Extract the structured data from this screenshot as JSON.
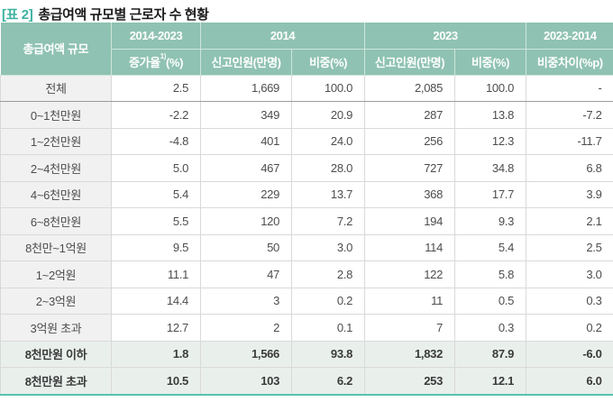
{
  "title": {
    "tag": "[표 2]",
    "text": "총급여액 규모별 근로자 수 현황"
  },
  "table": {
    "header": {
      "row_label_col": "총급여액 규모",
      "groups": [
        "2014-2023",
        "2014",
        "2023",
        "2023-2014"
      ],
      "sub_growth": {
        "prefix": "증가율",
        "sup": "1)",
        "suffix": "(%)"
      },
      "subs": [
        "신고인원(만명)",
        "비중(%)",
        "신고인원(만명)",
        "비중(%)",
        "비중차이(%p)"
      ]
    },
    "rows": [
      {
        "label": "전체",
        "values": [
          "2.5",
          "1,669",
          "100.0",
          "2,085",
          "100.0",
          "-"
        ],
        "type": "total"
      },
      {
        "label": "0~1천만원",
        "values": [
          "-2.2",
          "349",
          "20.9",
          "287",
          "13.8",
          "-7.2"
        ],
        "type": "normal"
      },
      {
        "label": "1~2천만원",
        "values": [
          "-4.8",
          "401",
          "24.0",
          "256",
          "12.3",
          "-11.7"
        ],
        "type": "normal"
      },
      {
        "label": "2~4천만원",
        "values": [
          "5.0",
          "467",
          "28.0",
          "727",
          "34.8",
          "6.8"
        ],
        "type": "normal"
      },
      {
        "label": "4~6천만원",
        "values": [
          "5.4",
          "229",
          "13.7",
          "368",
          "17.7",
          "3.9"
        ],
        "type": "normal"
      },
      {
        "label": "6~8천만원",
        "values": [
          "5.5",
          "120",
          "7.2",
          "194",
          "9.3",
          "2.1"
        ],
        "type": "normal"
      },
      {
        "label": "8천만~1억원",
        "values": [
          "9.5",
          "50",
          "3.0",
          "114",
          "5.4",
          "2.5"
        ],
        "type": "normal"
      },
      {
        "label": "1~2억원",
        "values": [
          "11.1",
          "47",
          "2.8",
          "122",
          "5.8",
          "3.0"
        ],
        "type": "normal"
      },
      {
        "label": "2~3억원",
        "values": [
          "14.4",
          "3",
          "0.2",
          "11",
          "0.5",
          "0.3"
        ],
        "type": "normal"
      },
      {
        "label": "3억원 초과",
        "values": [
          "12.7",
          "2",
          "0.1",
          "7",
          "0.3",
          "0.2"
        ],
        "type": "normal"
      },
      {
        "label": "8천만원 이하",
        "values": [
          "1.8",
          "1,566",
          "93.8",
          "1,832",
          "87.9",
          "-6.0"
        ],
        "type": "summary-first"
      },
      {
        "label": "8천만원 초과",
        "values": [
          "10.5",
          "103",
          "6.2",
          "253",
          "12.1",
          "6.0"
        ],
        "type": "summary"
      }
    ]
  },
  "colors": {
    "header_bg": "#8fc2b2",
    "accent": "#3cb2a0",
    "bottom_border": "#56c3b1",
    "label_bg": "#f1f1f1",
    "summary_bg": "#e9f0ec",
    "body_text": "#4d4d4d",
    "dark_divider": "#9b9b9b",
    "grid": "#d9d9d9",
    "title_text": "#1b1b1b"
  }
}
